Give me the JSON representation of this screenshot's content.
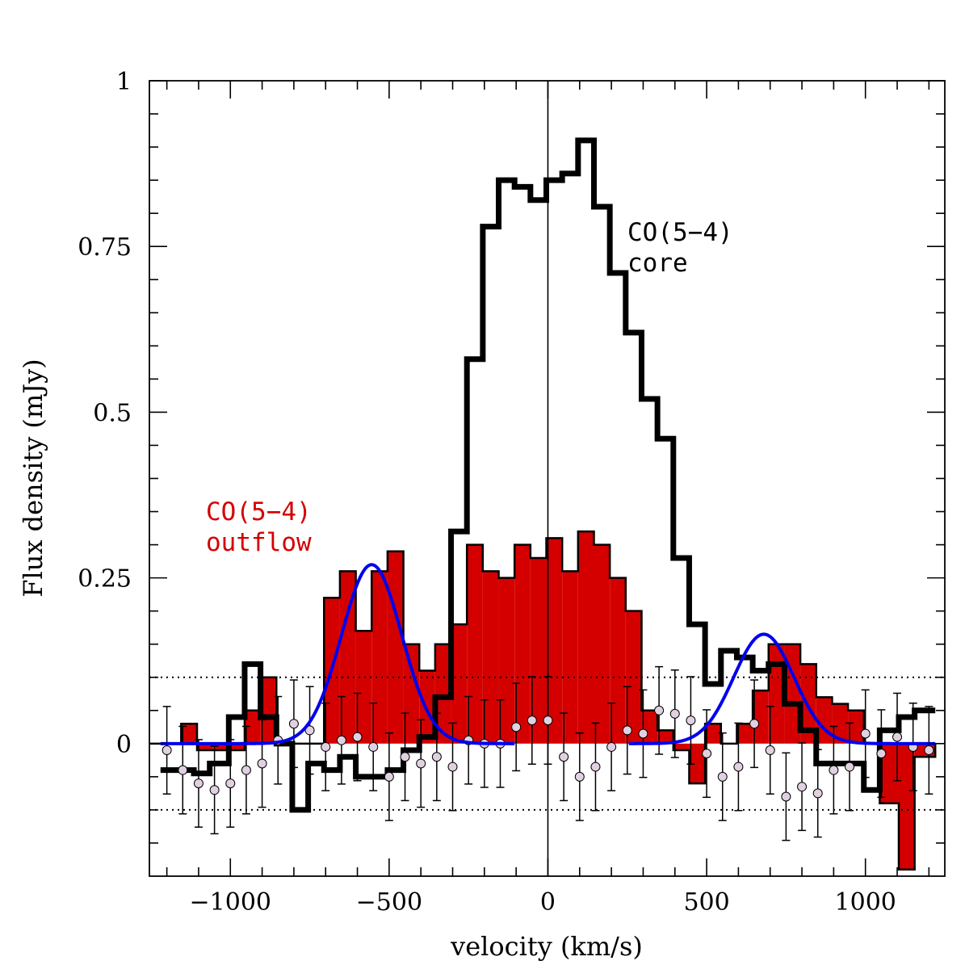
{
  "chart_data": {
    "type": "line",
    "xlabel": "velocity (km/s)",
    "ylabel": "Flux density (mJy)",
    "xlim": [
      -1255,
      1250
    ],
    "ylim": [
      -0.2,
      1.0
    ],
    "x_ticks": [
      -1000,
      -500,
      0,
      500,
      1000
    ],
    "x_tick_labels": [
      "−1000",
      "−500",
      "0",
      "500",
      "1000"
    ],
    "y_ticks": [
      0,
      0.25,
      0.5,
      0.75,
      1
    ],
    "y_tick_labels": [
      "0",
      "0.25",
      "0.5",
      "0.75",
      "1"
    ],
    "grid": false,
    "reference_lines": {
      "zero_velocity": 0,
      "dotted_levels": [
        0.1,
        -0.1
      ]
    },
    "colors": {
      "core": "#000000",
      "outflow_fill": "#d40000",
      "gauss_fit": "#0000ee",
      "residual_marker": "#e0d0e0"
    },
    "annotations": [
      {
        "id": "core-label",
        "lines": [
          "CO(5−4)",
          "core"
        ],
        "color": "#000000"
      },
      {
        "id": "outflow-label",
        "lines": [
          "CO(5−4)",
          "outflow"
        ],
        "color": "#d40000"
      }
    ],
    "step_series": [
      {
        "id": "outflow",
        "style": "filled-step",
        "edges": [
          -1255,
          -1155,
          -1105,
          -1055,
          -1005,
          -955,
          -905,
          -855,
          -805,
          -755,
          -705,
          -655,
          -605,
          -555,
          -505,
          -455,
          -405,
          -355,
          -305,
          -255,
          -205,
          -155,
          -105,
          -55,
          -5,
          45,
          95,
          145,
          195,
          245,
          295,
          345,
          395,
          445,
          495,
          545,
          595,
          645,
          695,
          745,
          795,
          845,
          895,
          945,
          995,
          1045,
          1105,
          1155,
          1220
        ],
        "values": [
          0.0,
          0.03,
          -0.01,
          -0.01,
          -0.01,
          0.05,
          0.1,
          0.0,
          0.0,
          0.0,
          0.22,
          0.26,
          0.17,
          0.26,
          0.29,
          0.15,
          0.11,
          0.15,
          0.18,
          0.3,
          0.26,
          0.25,
          0.3,
          0.28,
          0.31,
          0.26,
          0.32,
          0.3,
          0.25,
          0.2,
          0.05,
          0.02,
          -0.01,
          -0.06,
          0.03,
          0.0,
          0.03,
          0.08,
          0.15,
          0.15,
          0.12,
          0.07,
          0.06,
          0.05,
          0.0,
          -0.09,
          -0.19,
          -0.02
        ]
      },
      {
        "id": "core",
        "style": "thick-step",
        "edges": [
          -1220,
          -1165,
          -1115,
          -1065,
          -1005,
          -955,
          -905,
          -855,
          -805,
          -755,
          -705,
          -655,
          -605,
          -555,
          -505,
          -455,
          -405,
          -355,
          -305,
          -255,
          -205,
          -155,
          -105,
          -55,
          -5,
          45,
          95,
          145,
          195,
          245,
          295,
          345,
          395,
          445,
          495,
          545,
          595,
          645,
          695,
          745,
          795,
          845,
          895,
          945,
          995,
          1045,
          1105,
          1155,
          1220
        ],
        "values": [
          -0.04,
          -0.04,
          -0.045,
          -0.03,
          0.04,
          0.12,
          0.04,
          0.0,
          -0.1,
          -0.03,
          -0.04,
          -0.02,
          -0.05,
          -0.05,
          -0.04,
          -0.01,
          0.01,
          0.07,
          0.32,
          0.58,
          0.78,
          0.85,
          0.84,
          0.82,
          0.85,
          0.86,
          0.91,
          0.81,
          0.71,
          0.62,
          0.52,
          0.46,
          0.28,
          0.18,
          0.09,
          0.14,
          0.13,
          0.11,
          0.12,
          0.06,
          0.02,
          -0.03,
          -0.03,
          -0.03,
          -0.07,
          0.02,
          0.04,
          0.05
        ]
      }
    ],
    "gaussian_fits": [
      {
        "id": "blue-component",
        "amplitude": 0.27,
        "center": -555,
        "sigma": 95,
        "range": [
          -1220,
          -105
        ]
      },
      {
        "id": "red-component",
        "amplitude": 0.165,
        "center": 680,
        "sigma": 95,
        "range": [
          255,
          1220
        ]
      }
    ],
    "residual_points": {
      "error": 0.066,
      "x": [
        -1200,
        -1150,
        -1100,
        -1050,
        -1000,
        -950,
        -900,
        -850,
        -800,
        -750,
        -700,
        -650,
        -600,
        -550,
        -500,
        -450,
        -400,
        -350,
        -300,
        -250,
        -200,
        -150,
        -100,
        -50,
        0,
        50,
        100,
        150,
        200,
        250,
        300,
        350,
        400,
        450,
        500,
        550,
        600,
        650,
        700,
        750,
        800,
        850,
        900,
        950,
        1000,
        1050,
        1100,
        1150,
        1200
      ],
      "y": [
        -0.01,
        -0.04,
        -0.06,
        -0.07,
        -0.06,
        -0.04,
        -0.03,
        0.005,
        0.03,
        0.02,
        -0.005,
        0.005,
        0.01,
        -0.005,
        -0.05,
        -0.02,
        -0.03,
        -0.02,
        -0.035,
        0.005,
        0.0,
        0.0,
        0.025,
        0.035,
        0.035,
        -0.02,
        -0.05,
        -0.035,
        -0.005,
        0.02,
        0.015,
        0.05,
        0.045,
        0.035,
        -0.015,
        -0.05,
        -0.035,
        0.03,
        -0.01,
        -0.08,
        -0.065,
        -0.075,
        -0.04,
        -0.035,
        0.015,
        -0.015,
        0.01,
        -0.005,
        -0.01
      ]
    }
  }
}
